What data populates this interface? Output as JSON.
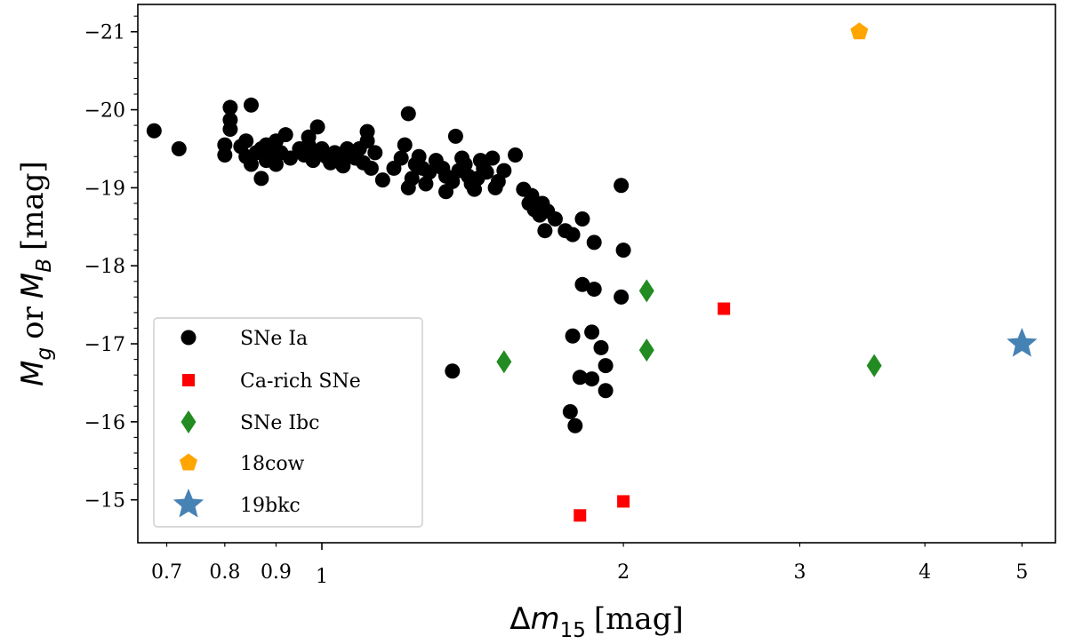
{
  "chart_data": {
    "type": "scatter",
    "x_scale": "log",
    "y_inverted": true,
    "xlim": [
      0.655,
      5.4
    ],
    "ylim": [
      -14.45,
      -21.35
    ],
    "xlabel": {
      "prefix": "Δ",
      "var": "m",
      "sub": "15",
      "unit": "[mag]"
    },
    "ylabel": {
      "var1": "M",
      "sub1": "g",
      "or": "or",
      "var2": "M",
      "sub2": "B",
      "unit": "[mag]"
    },
    "x_ticks": [
      {
        "value": 0.7,
        "label": "0.7"
      },
      {
        "value": 0.8,
        "label": "0.8"
      },
      {
        "value": 0.9,
        "label": "0.9"
      },
      {
        "value": 1,
        "label": "1"
      },
      {
        "value": 2,
        "label": "2"
      },
      {
        "value": 3,
        "label": "3"
      },
      {
        "value": 4,
        "label": "4"
      },
      {
        "value": 5,
        "label": "5"
      }
    ],
    "x_minor_ticks": [
      0.7,
      0.8,
      0.9,
      2,
      3,
      4,
      5
    ],
    "y_ticks": [
      {
        "value": -21,
        "label": "−21"
      },
      {
        "value": -20,
        "label": "−20"
      },
      {
        "value": -19,
        "label": "−19"
      },
      {
        "value": -18,
        "label": "−18"
      },
      {
        "value": -17,
        "label": "−17"
      },
      {
        "value": -16,
        "label": "−16"
      },
      {
        "value": -15,
        "label": "−15"
      }
    ],
    "legend_position": "lower-left",
    "series": [
      {
        "name": "SNe Ia",
        "marker": "circle",
        "color": "#000000",
        "points": [
          [
            0.68,
            -19.73
          ],
          [
            0.72,
            -19.5
          ],
          [
            0.8,
            -19.42
          ],
          [
            0.8,
            -19.55
          ],
          [
            0.81,
            -19.75
          ],
          [
            0.81,
            -19.87
          ],
          [
            0.81,
            -20.03
          ],
          [
            0.83,
            -19.53
          ],
          [
            0.84,
            -19.4
          ],
          [
            0.84,
            -19.6
          ],
          [
            0.85,
            -20.06
          ],
          [
            0.85,
            -19.3
          ],
          [
            0.86,
            -19.45
          ],
          [
            0.87,
            -19.5
          ],
          [
            0.87,
            -19.12
          ],
          [
            0.88,
            -19.35
          ],
          [
            0.88,
            -19.55
          ],
          [
            0.89,
            -19.42
          ],
          [
            0.9,
            -19.6
          ],
          [
            0.9,
            -19.3
          ],
          [
            0.91,
            -19.45
          ],
          [
            0.92,
            -19.68
          ],
          [
            0.93,
            -19.38
          ],
          [
            0.95,
            -19.5
          ],
          [
            0.96,
            -19.42
          ],
          [
            0.97,
            -19.55
          ],
          [
            0.97,
            -19.65
          ],
          [
            0.98,
            -19.35
          ],
          [
            0.99,
            -19.78
          ],
          [
            0.99,
            -19.45
          ],
          [
            1.0,
            -19.5
          ],
          [
            1.01,
            -19.4
          ],
          [
            1.02,
            -19.32
          ],
          [
            1.03,
            -19.45
          ],
          [
            1.04,
            -19.36
          ],
          [
            1.05,
            -19.28
          ],
          [
            1.06,
            -19.5
          ],
          [
            1.07,
            -19.42
          ],
          [
            1.08,
            -19.38
          ],
          [
            1.09,
            -19.5
          ],
          [
            1.1,
            -19.32
          ],
          [
            1.11,
            -19.6
          ],
          [
            1.11,
            -19.72
          ],
          [
            1.12,
            -19.25
          ],
          [
            1.13,
            -19.45
          ],
          [
            1.15,
            -19.1
          ],
          [
            1.18,
            -19.25
          ],
          [
            1.2,
            -19.38
          ],
          [
            1.21,
            -19.55
          ],
          [
            1.22,
            -19.95
          ],
          [
            1.22,
            -19.0
          ],
          [
            1.23,
            -19.12
          ],
          [
            1.24,
            -19.3
          ],
          [
            1.25,
            -19.4
          ],
          [
            1.26,
            -19.25
          ],
          [
            1.27,
            -19.05
          ],
          [
            1.28,
            -19.2
          ],
          [
            1.3,
            -19.35
          ],
          [
            1.32,
            -19.25
          ],
          [
            1.33,
            -19.15
          ],
          [
            1.33,
            -18.95
          ],
          [
            1.35,
            -19.08
          ],
          [
            1.36,
            -19.66
          ],
          [
            1.37,
            -19.22
          ],
          [
            1.38,
            -19.38
          ],
          [
            1.39,
            -19.3
          ],
          [
            1.4,
            -19.15
          ],
          [
            1.41,
            -19.05
          ],
          [
            1.42,
            -18.98
          ],
          [
            1.43,
            -19.12
          ],
          [
            1.44,
            -19.35
          ],
          [
            1.45,
            -19.25
          ],
          [
            1.46,
            -19.2
          ],
          [
            1.48,
            -19.38
          ],
          [
            1.49,
            -19.0
          ],
          [
            1.5,
            -19.08
          ],
          [
            1.52,
            -19.22
          ],
          [
            1.56,
            -19.42
          ],
          [
            1.59,
            -18.98
          ],
          [
            1.61,
            -18.8
          ],
          [
            1.62,
            -18.9
          ],
          [
            1.63,
            -18.72
          ],
          [
            1.65,
            -18.65
          ],
          [
            1.66,
            -18.8
          ],
          [
            1.67,
            -18.45
          ],
          [
            1.68,
            -18.7
          ],
          [
            1.71,
            -18.6
          ],
          [
            1.75,
            -18.45
          ],
          [
            1.78,
            -18.4
          ],
          [
            1.82,
            -18.6
          ],
          [
            1.87,
            -18.3
          ],
          [
            1.99,
            -19.03
          ],
          [
            2.0,
            -18.2
          ],
          [
            1.99,
            -17.6
          ],
          [
            1.82,
            -17.76
          ],
          [
            1.87,
            -17.7
          ],
          [
            1.78,
            -17.1
          ],
          [
            1.86,
            -17.15
          ],
          [
            1.9,
            -16.95
          ],
          [
            1.92,
            -16.72
          ],
          [
            1.81,
            -16.57
          ],
          [
            1.86,
            -16.55
          ],
          [
            1.92,
            -16.4
          ],
          [
            1.77,
            -16.13
          ],
          [
            1.79,
            -15.95
          ],
          [
            1.35,
            -16.65
          ]
        ]
      },
      {
        "name": "Ca-rich SNe",
        "marker": "square",
        "color": "#ff0000",
        "points": [
          [
            2.52,
            -17.45
          ],
          [
            1.81,
            -14.8
          ],
          [
            2.0,
            -14.98
          ]
        ]
      },
      {
        "name": "SNe Ibc",
        "marker": "diamond",
        "color": "#228b22",
        "points": [
          [
            1.52,
            -16.77
          ],
          [
            2.11,
            -17.68
          ],
          [
            2.11,
            -16.92
          ],
          [
            3.56,
            -16.72
          ]
        ]
      },
      {
        "name": "18cow",
        "marker": "pentagon",
        "color": "#ffa500",
        "points": [
          [
            3.44,
            -21.0
          ]
        ]
      },
      {
        "name": "19bkc",
        "marker": "star",
        "color": "#4682b4",
        "points": [
          [
            5.0,
            -17.0
          ]
        ]
      }
    ]
  }
}
